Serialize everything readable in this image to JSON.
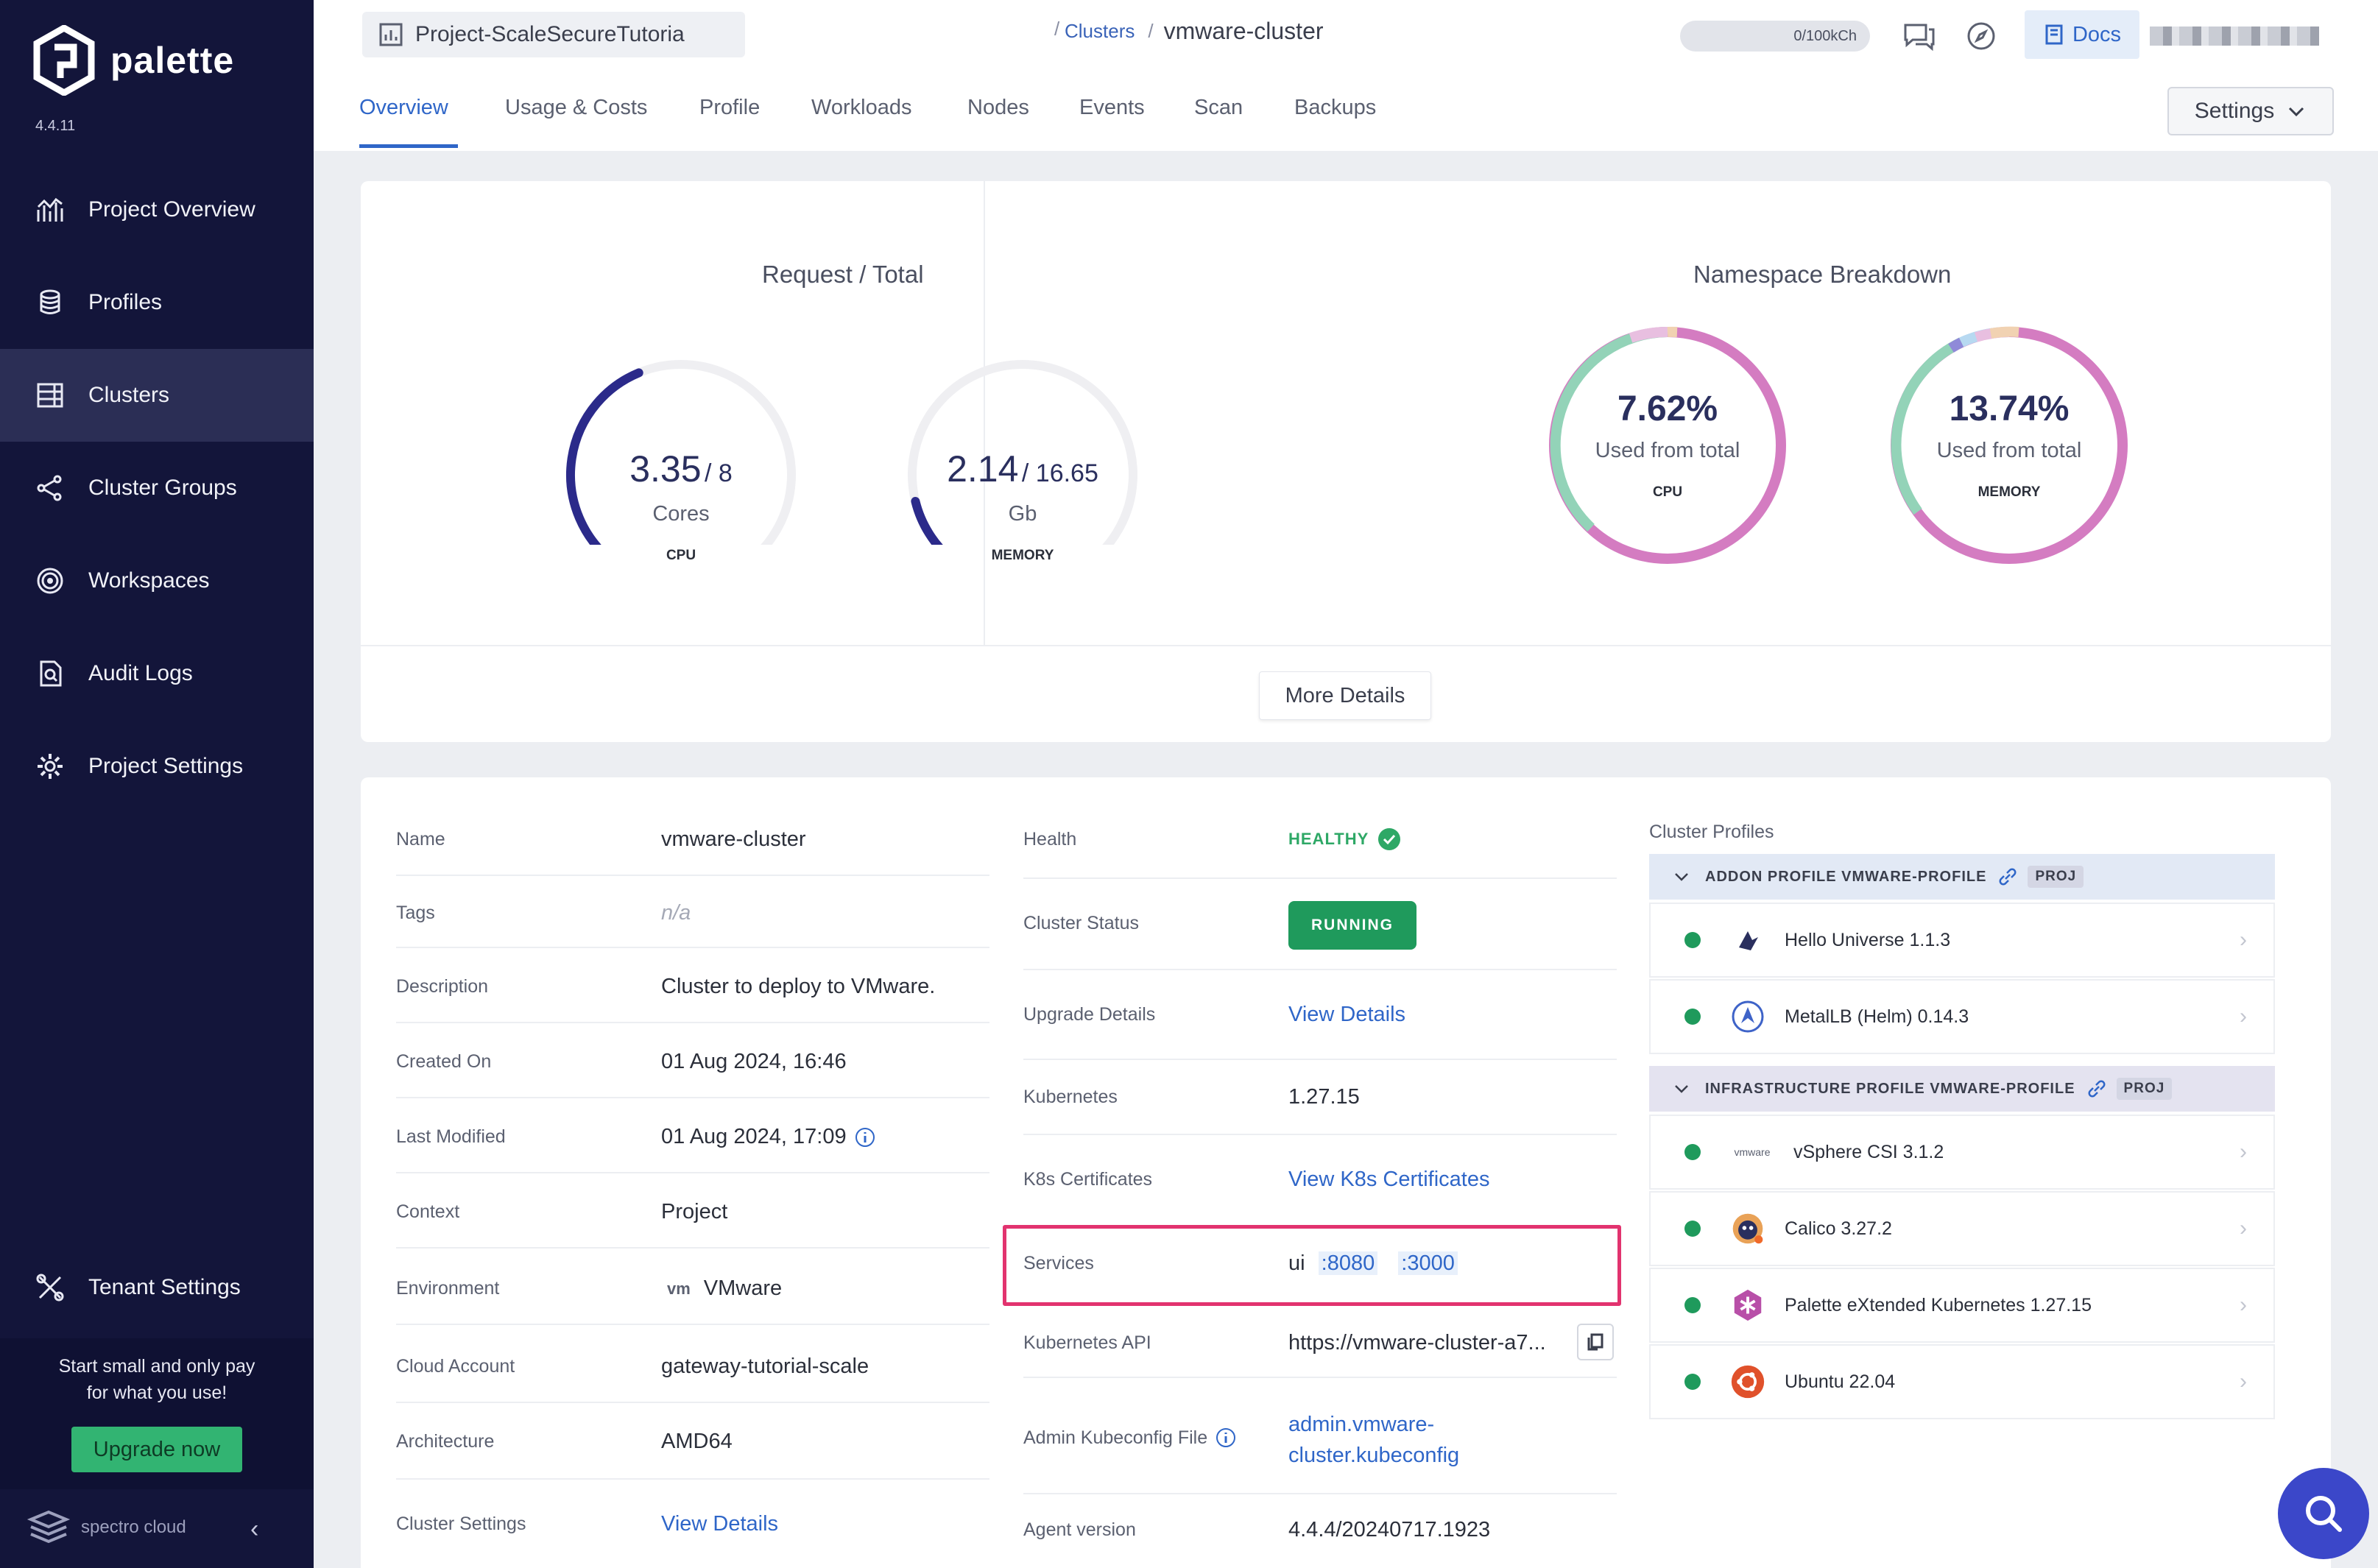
{
  "sidebar": {
    "brand": "palette",
    "version": "4.4.11",
    "items": [
      {
        "label": "Project Overview",
        "icon": "chart-icon"
      },
      {
        "label": "Profiles",
        "icon": "stack-icon"
      },
      {
        "label": "Clusters",
        "icon": "clusters-icon"
      },
      {
        "label": "Cluster Groups",
        "icon": "share-icon"
      },
      {
        "label": "Workspaces",
        "icon": "target-icon"
      },
      {
        "label": "Audit Logs",
        "icon": "file-search-icon"
      },
      {
        "label": "Project Settings",
        "icon": "gear-icon"
      }
    ],
    "tenant_settings": "Tenant Settings",
    "promo_text_line1": "Start small and only pay",
    "promo_text_line2": "for what you use!",
    "upgrade_label": "Upgrade now",
    "footer_brand": "spectro cloud"
  },
  "header": {
    "project": "Project-ScaleSecureTutoria",
    "crumb_sep": "/",
    "crumb_parent": "Clusters",
    "crumb_current": "vmware-cluster",
    "credits": "0/100kCh",
    "docs_label": "Docs",
    "tabs": [
      "Overview",
      "Usage & Costs",
      "Profile",
      "Workloads",
      "Nodes",
      "Events",
      "Scan",
      "Backups"
    ],
    "settings_label": "Settings"
  },
  "usage": {
    "request_title": "Request / Total",
    "cpu": {
      "used": "3.35",
      "total": "/ 8",
      "unit": "Cores",
      "caption": "CPU",
      "fraction": 0.42
    },
    "memory": {
      "used": "2.14",
      "total": "/ 16.65",
      "unit": "Gb",
      "caption": "MEMORY",
      "fraction": 0.13
    },
    "namespace_title": "Namespace Breakdown",
    "ns_cpu": {
      "percent": "7.62%",
      "sub": "Used from total",
      "caption": "CPU"
    },
    "ns_memory": {
      "percent": "13.74%",
      "sub": "Used from total",
      "caption": "MEMORY"
    },
    "more_details": "More Details"
  },
  "details": {
    "name_label": "Name",
    "name": "vmware-cluster",
    "tags_label": "Tags",
    "tags": "n/a",
    "description_label": "Description",
    "description": "Cluster to deploy to VMware.",
    "created_label": "Created On",
    "created": "01 Aug 2024, 16:46",
    "modified_label": "Last Modified",
    "modified": "01 Aug 2024, 17:09",
    "context_label": "Context",
    "context": "Project",
    "environment_label": "Environment",
    "environment_logo": "vm",
    "environment": "VMware",
    "cloud_label": "Cloud Account",
    "cloud": "gateway-tutorial-scale",
    "arch_label": "Architecture",
    "arch": "AMD64",
    "cluster_settings_label": "Cluster Settings",
    "cluster_settings": "View Details"
  },
  "status": {
    "health_label": "Health",
    "health": "HEALTHY",
    "cluster_status_label": "Cluster Status",
    "cluster_status": "RUNNING",
    "upgrade_label": "Upgrade Details",
    "upgrade": "View Details",
    "k8s_label": "Kubernetes",
    "k8s": "1.27.15",
    "certs_label": "K8s Certificates",
    "certs": "View K8s Certificates",
    "services_label": "Services",
    "service_name": "ui",
    "port1": ":8080",
    "port2": ":3000",
    "api_label": "Kubernetes API",
    "api": "https://vmware-cluster-a7...",
    "kubeconfig_label": "Admin Kubeconfig File",
    "kubeconfig_line1": "admin.vmware-",
    "kubeconfig_line2": "cluster.kubeconfig",
    "agent_label": "Agent version",
    "agent": "4.4.4/20240717.1923"
  },
  "profiles": {
    "title": "Cluster Profiles",
    "groups": [
      {
        "name": "ADDON PROFILE VMWARE-PROFILE",
        "badge": "PROJ",
        "items": [
          {
            "label": "Hello Universe 1.1.3"
          },
          {
            "label": "MetalLB (Helm) 0.14.3"
          }
        ]
      },
      {
        "name": "INFRASTRUCTURE PROFILE VMWARE-PROFILE",
        "badge": "PROJ",
        "items": [
          {
            "label": "vSphere CSI 3.1.2",
            "logo_text": "vmware"
          },
          {
            "label": "Calico 3.27.2"
          },
          {
            "label": "Palette eXtended Kubernetes 1.27.15"
          },
          {
            "label": "Ubuntu 22.04"
          }
        ]
      }
    ]
  },
  "colors": {
    "accent": "#2f66c8",
    "sidebar": "#13153a",
    "healthy": "#1f9a5c",
    "highlight": "#e2336f"
  }
}
